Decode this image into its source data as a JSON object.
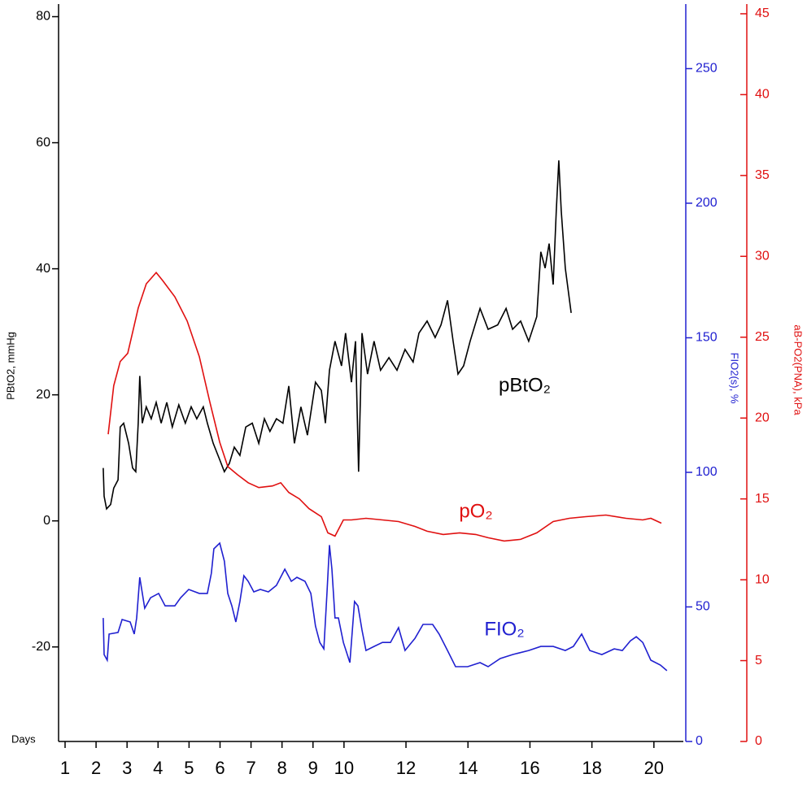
{
  "chart_data": {
    "type": "line",
    "x_label": "Days",
    "y_label": "PBtO2, mmHg",
    "y2_label": "FIO2(s), %",
    "y3_label": "aB-PO2(PNA), kPa",
    "xlim": [
      0.79,
      20.95
    ],
    "xticks": [
      1,
      2,
      3,
      4,
      5,
      6,
      7,
      8,
      9,
      10,
      12,
      14,
      16,
      18,
      20
    ],
    "ylim": [
      -35,
      82
    ],
    "yticks": [
      -20,
      0,
      20,
      40,
      60,
      80
    ],
    "y2lim": [
      0,
      274
    ],
    "y2ticks": [
      0,
      50,
      100,
      150,
      200,
      250
    ],
    "y3lim": [
      0,
      45.6
    ],
    "y3ticks": [
      0,
      5,
      10,
      15,
      20,
      25,
      30,
      35,
      40,
      45
    ],
    "axis_colors": {
      "y": "#000000",
      "y2": "#2020d0",
      "y3": "#e01010"
    },
    "series": [
      {
        "name": "pBtO₂",
        "color": "#000000",
        "axis": "y",
        "x": [
          2.23,
          2.26,
          2.34,
          2.47,
          2.57,
          2.71,
          2.78,
          2.89,
          3.05,
          3.18,
          3.28,
          3.36,
          3.41,
          3.49,
          3.62,
          3.78,
          3.94,
          4.1,
          4.28,
          4.46,
          4.67,
          4.88,
          5.07,
          5.25,
          5.46,
          5.59,
          5.78,
          5.99,
          6.14,
          6.3,
          6.46,
          6.64,
          6.83,
          7.04,
          7.25,
          7.43,
          7.61,
          7.82,
          8.03,
          8.22,
          8.4,
          8.61,
          8.82,
          9.08,
          9.27,
          9.4,
          9.53,
          9.71,
          9.92,
          10.05,
          10.24,
          10.37,
          10.47,
          10.58,
          10.76,
          10.97,
          11.18,
          11.45,
          11.71,
          11.97,
          12.23,
          12.42,
          12.68,
          12.94,
          13.13,
          13.34,
          13.52,
          13.68,
          13.86,
          14.07,
          14.39,
          14.65,
          14.96,
          15.23,
          15.44,
          15.7,
          15.96,
          16.22,
          16.35,
          16.49,
          16.62,
          16.75,
          16.85,
          16.93,
          17.01,
          17.14,
          17.33
        ],
        "values": [
          8.4,
          3.9,
          1.9,
          2.6,
          5.2,
          6.5,
          14.9,
          15.5,
          12.3,
          8.4,
          7.8,
          15.5,
          23,
          15.5,
          18.1,
          16.2,
          18.8,
          15.5,
          18.8,
          14.9,
          18.4,
          15.5,
          18.1,
          16.2,
          18.1,
          15.5,
          12.3,
          9.7,
          7.8,
          9.1,
          11.7,
          10.4,
          14.9,
          15.5,
          12.3,
          16.2,
          14.2,
          16.2,
          15.5,
          21.4,
          12.3,
          18.1,
          13.6,
          22,
          20.7,
          15.5,
          23.9,
          28.5,
          24.6,
          29.8,
          22,
          28.5,
          7.8,
          29.8,
          23.3,
          28.5,
          23.9,
          25.9,
          23.9,
          27.2,
          25.2,
          29.8,
          31.7,
          29.1,
          31.1,
          35,
          28.5,
          23.3,
          24.6,
          28.5,
          33.7,
          30.4,
          31.1,
          33.7,
          30.4,
          31.7,
          28.5,
          32.4,
          42.7,
          40.1,
          44,
          37.5,
          49.2,
          57.2,
          49.2,
          40.1,
          33
        ]
      },
      {
        "name": "pO₂",
        "color": "#e01010",
        "axis": "y3",
        "x": [
          2.39,
          2.57,
          2.78,
          3.02,
          3.18,
          3.36,
          3.62,
          3.94,
          4.15,
          4.54,
          4.94,
          5.33,
          5.67,
          5.99,
          6.25,
          6.56,
          6.91,
          7.25,
          7.69,
          7.96,
          8.22,
          8.56,
          8.87,
          9.27,
          9.48,
          9.71,
          9.98,
          10.24,
          10.71,
          11.24,
          11.76,
          12.29,
          12.68,
          13.2,
          13.73,
          14.25,
          14.65,
          15.17,
          15.7,
          16.22,
          16.75,
          17.27,
          17.8,
          18.45,
          19.1,
          19.64,
          19.9,
          20.24
        ],
        "values": [
          19,
          22,
          23.5,
          24,
          25.3,
          26.8,
          28.3,
          29,
          28.5,
          27.5,
          26,
          23.8,
          21,
          18.5,
          17,
          16.5,
          16,
          15.7,
          15.8,
          16,
          15.4,
          15,
          14.4,
          13.9,
          12.9,
          12.7,
          13.7,
          13.7,
          13.8,
          13.7,
          13.6,
          13.3,
          13,
          12.8,
          12.9,
          12.8,
          12.6,
          12.4,
          12.5,
          12.9,
          13.6,
          13.8,
          13.9,
          14,
          13.8,
          13.7,
          13.8,
          13.5
        ]
      },
      {
        "name": "FIO₂",
        "color": "#2020d0",
        "axis": "y2",
        "x": [
          2.23,
          2.26,
          2.36,
          2.42,
          2.71,
          2.84,
          3.1,
          3.23,
          3.31,
          3.41,
          3.57,
          3.76,
          4.02,
          4.23,
          4.54,
          4.73,
          4.99,
          5.33,
          5.59,
          5.72,
          5.8,
          5.99,
          6.14,
          6.25,
          6.38,
          6.51,
          6.64,
          6.77,
          6.91,
          7.09,
          7.3,
          7.56,
          7.82,
          8.09,
          8.3,
          8.48,
          8.74,
          8.93,
          9.08,
          9.22,
          9.35,
          9.45,
          9.53,
          9.61,
          9.71,
          9.82,
          9.98,
          10.19,
          10.34,
          10.45,
          10.58,
          10.71,
          10.97,
          11.24,
          11.5,
          11.76,
          11.97,
          12.29,
          12.55,
          12.86,
          13.07,
          13.34,
          13.6,
          13.99,
          14.39,
          14.65,
          15.04,
          15.44,
          15.96,
          16.35,
          16.75,
          17.14,
          17.4,
          17.67,
          17.93,
          18.32,
          18.72,
          18.98,
          19.24,
          19.43,
          19.64,
          19.9,
          20.21,
          20.42
        ],
        "values": [
          45.9,
          32.3,
          30.2,
          39.9,
          40.5,
          45.3,
          44.4,
          39.9,
          45.9,
          61,
          49.5,
          53.4,
          55,
          50.4,
          50.4,
          53.4,
          56.5,
          55,
          55,
          62.5,
          71.6,
          73.7,
          67,
          55,
          50.4,
          44.4,
          52,
          61.6,
          59.5,
          55.6,
          56.5,
          55.6,
          58,
          64,
          59.5,
          61,
          59.5,
          55,
          42.9,
          36.8,
          34.4,
          55,
          73,
          64,
          45.9,
          45.9,
          36.8,
          29.3,
          52,
          50.4,
          41.4,
          33.8,
          35.3,
          36.8,
          36.8,
          42.3,
          33.8,
          38.3,
          43.5,
          43.5,
          39.9,
          33.8,
          27.8,
          27.8,
          29.3,
          27.8,
          30.8,
          32.3,
          33.8,
          35.3,
          35.3,
          33.8,
          35.3,
          39.9,
          33.8,
          32.3,
          34.4,
          33.8,
          37.4,
          38.9,
          36.8,
          30.2,
          28.4,
          26.3
        ]
      }
    ]
  }
}
